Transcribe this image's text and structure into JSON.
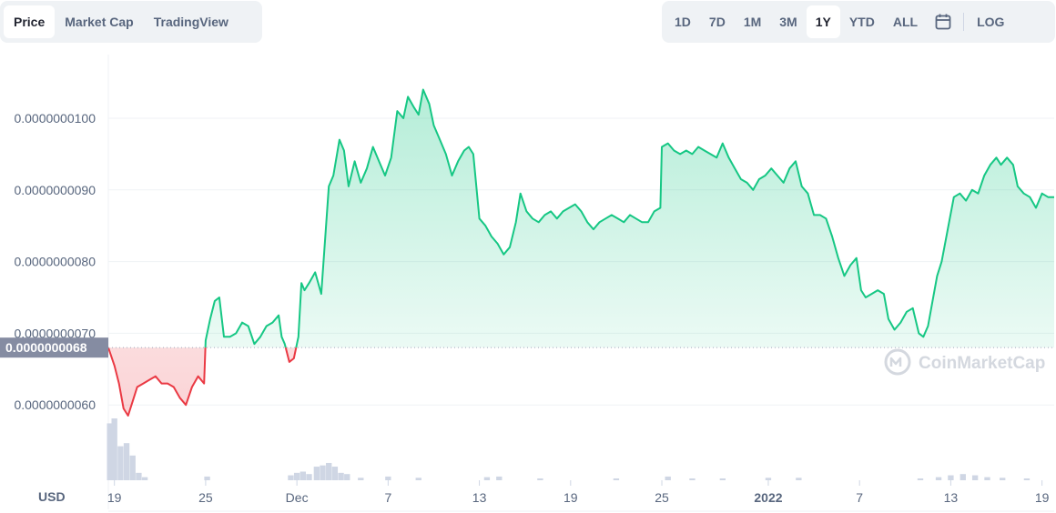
{
  "tabs_left": [
    {
      "label": "Price",
      "active": true
    },
    {
      "label": "Market Cap",
      "active": false
    },
    {
      "label": "TradingView",
      "active": false
    }
  ],
  "tabs_right": [
    {
      "label": "1D",
      "active": false
    },
    {
      "label": "7D",
      "active": false
    },
    {
      "label": "1M",
      "active": false
    },
    {
      "label": "3M",
      "active": false
    },
    {
      "label": "1Y",
      "active": true
    },
    {
      "label": "YTD",
      "active": false
    },
    {
      "label": "ALL",
      "active": false
    }
  ],
  "log_label": "LOG",
  "calendar_icon": "calendar-icon",
  "currency_label": "USD",
  "watermark": "CoinMarketCap",
  "colors": {
    "up": "#16c784",
    "down": "#ea3943",
    "grid": "#eff2f5",
    "volume": "#cfd6e4",
    "ref_tag": "#858ca2"
  },
  "chart_data": {
    "type": "line",
    "ref_price": 6.8e-09,
    "ref_label": "0.0000000068",
    "ylim": [
      5.2e-09,
      1.1e-08
    ],
    "yticks": [
      "0.0000000060",
      "0.0000000070",
      "0.0000000080",
      "0.0000000090",
      "0.0000000100"
    ],
    "ytick_values": [
      6e-09,
      7e-09,
      8e-09,
      9e-09,
      1e-08
    ],
    "xticks": [
      {
        "label": "19",
        "x": 0.0
      },
      {
        "label": "25",
        "x": 6.0
      },
      {
        "label": "Dec",
        "x": 12.0
      },
      {
        "label": "7",
        "x": 18.0
      },
      {
        "label": "13",
        "x": 24.0
      },
      {
        "label": "19",
        "x": 30.0
      },
      {
        "label": "25",
        "x": 36.0
      },
      {
        "label": "2022",
        "x": 43.0,
        "bold": true
      },
      {
        "label": "7",
        "x": 49.0
      },
      {
        "label": "13",
        "x": 55.0
      },
      {
        "label": "19",
        "x": 61.0
      }
    ],
    "xlim": [
      -0.4,
      61.8
    ],
    "price": [
      [
        -0.4,
        6.8
      ],
      [
        0.0,
        6.55
      ],
      [
        0.3,
        6.3
      ],
      [
        0.6,
        5.95
      ],
      [
        0.9,
        5.85
      ],
      [
        1.2,
        6.05
      ],
      [
        1.5,
        6.25
      ],
      [
        1.9,
        6.3
      ],
      [
        2.3,
        6.35
      ],
      [
        2.7,
        6.4
      ],
      [
        3.1,
        6.3
      ],
      [
        3.5,
        6.3
      ],
      [
        3.9,
        6.25
      ],
      [
        4.3,
        6.1
      ],
      [
        4.7,
        6.0
      ],
      [
        5.1,
        6.25
      ],
      [
        5.5,
        6.4
      ],
      [
        5.9,
        6.3
      ],
      [
        6.0,
        6.9
      ],
      [
        6.3,
        7.2
      ],
      [
        6.6,
        7.45
      ],
      [
        6.9,
        7.5
      ],
      [
        7.2,
        6.95
      ],
      [
        7.6,
        6.95
      ],
      [
        8.0,
        7.0
      ],
      [
        8.4,
        7.15
      ],
      [
        8.8,
        7.1
      ],
      [
        9.2,
        6.85
      ],
      [
        9.6,
        6.95
      ],
      [
        10.0,
        7.1
      ],
      [
        10.4,
        7.15
      ],
      [
        10.8,
        7.25
      ],
      [
        11.0,
        6.95
      ],
      [
        11.2,
        6.85
      ],
      [
        11.5,
        6.6
      ],
      [
        11.8,
        6.65
      ],
      [
        12.1,
        6.95
      ],
      [
        12.3,
        7.7
      ],
      [
        12.5,
        7.6
      ],
      [
        12.8,
        7.7
      ],
      [
        13.2,
        7.85
      ],
      [
        13.6,
        7.55
      ],
      [
        13.9,
        8.45
      ],
      [
        14.1,
        9.05
      ],
      [
        14.4,
        9.2
      ],
      [
        14.8,
        9.7
      ],
      [
        15.1,
        9.55
      ],
      [
        15.4,
        9.05
      ],
      [
        15.8,
        9.4
      ],
      [
        16.2,
        9.1
      ],
      [
        16.6,
        9.3
      ],
      [
        17.0,
        9.6
      ],
      [
        17.4,
        9.4
      ],
      [
        17.8,
        9.2
      ],
      [
        18.2,
        9.45
      ],
      [
        18.6,
        10.1
      ],
      [
        19.0,
        10.0
      ],
      [
        19.3,
        10.3
      ],
      [
        19.7,
        10.15
      ],
      [
        20.0,
        10.05
      ],
      [
        20.3,
        10.4
      ],
      [
        20.7,
        10.2
      ],
      [
        21.0,
        9.9
      ],
      [
        21.4,
        9.7
      ],
      [
        21.8,
        9.5
      ],
      [
        22.2,
        9.2
      ],
      [
        22.6,
        9.4
      ],
      [
        23.0,
        9.55
      ],
      [
        23.3,
        9.6
      ],
      [
        23.6,
        9.5
      ],
      [
        24.0,
        8.6
      ],
      [
        24.4,
        8.5
      ],
      [
        24.8,
        8.35
      ],
      [
        25.2,
        8.25
      ],
      [
        25.6,
        8.1
      ],
      [
        26.0,
        8.2
      ],
      [
        26.4,
        8.55
      ],
      [
        26.7,
        8.95
      ],
      [
        27.1,
        8.7
      ],
      [
        27.5,
        8.6
      ],
      [
        27.9,
        8.55
      ],
      [
        28.3,
        8.65
      ],
      [
        28.7,
        8.7
      ],
      [
        29.1,
        8.6
      ],
      [
        29.5,
        8.7
      ],
      [
        29.9,
        8.75
      ],
      [
        30.3,
        8.8
      ],
      [
        30.7,
        8.7
      ],
      [
        31.1,
        8.55
      ],
      [
        31.5,
        8.45
      ],
      [
        31.9,
        8.55
      ],
      [
        32.3,
        8.6
      ],
      [
        32.7,
        8.65
      ],
      [
        33.1,
        8.6
      ],
      [
        33.5,
        8.55
      ],
      [
        33.9,
        8.65
      ],
      [
        34.3,
        8.6
      ],
      [
        34.7,
        8.55
      ],
      [
        35.1,
        8.55
      ],
      [
        35.5,
        8.7
      ],
      [
        35.9,
        8.75
      ],
      [
        36.0,
        9.6
      ],
      [
        36.4,
        9.65
      ],
      [
        36.8,
        9.55
      ],
      [
        37.2,
        9.5
      ],
      [
        37.6,
        9.55
      ],
      [
        38.0,
        9.5
      ],
      [
        38.4,
        9.6
      ],
      [
        38.8,
        9.55
      ],
      [
        39.2,
        9.5
      ],
      [
        39.6,
        9.45
      ],
      [
        40.0,
        9.65
      ],
      [
        40.4,
        9.45
      ],
      [
        40.8,
        9.3
      ],
      [
        41.2,
        9.15
      ],
      [
        41.6,
        9.1
      ],
      [
        42.0,
        9.0
      ],
      [
        42.4,
        9.15
      ],
      [
        42.8,
        9.2
      ],
      [
        43.2,
        9.3
      ],
      [
        43.6,
        9.2
      ],
      [
        44.0,
        9.1
      ],
      [
        44.4,
        9.3
      ],
      [
        44.8,
        9.4
      ],
      [
        45.2,
        9.05
      ],
      [
        45.6,
        8.95
      ],
      [
        46.0,
        8.65
      ],
      [
        46.4,
        8.65
      ],
      [
        46.8,
        8.6
      ],
      [
        47.2,
        8.35
      ],
      [
        47.6,
        8.05
      ],
      [
        48.0,
        7.8
      ],
      [
        48.4,
        7.95
      ],
      [
        48.8,
        8.05
      ],
      [
        49.1,
        7.6
      ],
      [
        49.4,
        7.5
      ],
      [
        49.8,
        7.55
      ],
      [
        50.2,
        7.6
      ],
      [
        50.6,
        7.55
      ],
      [
        50.9,
        7.2
      ],
      [
        51.3,
        7.05
      ],
      [
        51.7,
        7.15
      ],
      [
        52.1,
        7.3
      ],
      [
        52.5,
        7.35
      ],
      [
        52.9,
        7.0
      ],
      [
        53.2,
        6.95
      ],
      [
        53.5,
        7.1
      ],
      [
        53.8,
        7.45
      ],
      [
        54.1,
        7.8
      ],
      [
        54.4,
        8.0
      ],
      [
        54.8,
        8.45
      ],
      [
        55.2,
        8.9
      ],
      [
        55.6,
        8.95
      ],
      [
        56.0,
        8.85
      ],
      [
        56.4,
        9.0
      ],
      [
        56.8,
        8.95
      ],
      [
        57.2,
        9.2
      ],
      [
        57.6,
        9.35
      ],
      [
        58.0,
        9.45
      ],
      [
        58.3,
        9.35
      ],
      [
        58.7,
        9.45
      ],
      [
        59.1,
        9.35
      ],
      [
        59.4,
        9.05
      ],
      [
        59.8,
        8.95
      ],
      [
        60.2,
        8.9
      ],
      [
        60.6,
        8.75
      ],
      [
        61.0,
        8.95
      ],
      [
        61.4,
        8.9
      ],
      [
        61.8,
        8.9
      ]
    ],
    "volume": [
      [
        -0.3,
        0.92
      ],
      [
        0.0,
        1.0
      ],
      [
        0.4,
        0.55
      ],
      [
        0.8,
        0.6
      ],
      [
        1.2,
        0.4
      ],
      [
        1.6,
        0.12
      ],
      [
        2.0,
        0.05
      ],
      [
        6.1,
        0.06
      ],
      [
        11.6,
        0.08
      ],
      [
        12.0,
        0.12
      ],
      [
        12.4,
        0.14
      ],
      [
        12.8,
        0.1
      ],
      [
        13.3,
        0.22
      ],
      [
        13.7,
        0.24
      ],
      [
        14.1,
        0.28
      ],
      [
        14.5,
        0.22
      ],
      [
        14.9,
        0.12
      ],
      [
        15.3,
        0.1
      ],
      [
        16.2,
        0.04
      ],
      [
        18.0,
        0.06
      ],
      [
        20.0,
        0.04
      ],
      [
        24.5,
        0.05
      ],
      [
        25.3,
        0.06
      ],
      [
        28.0,
        0.03
      ],
      [
        33.0,
        0.03
      ],
      [
        36.4,
        0.06
      ],
      [
        38.0,
        0.03
      ],
      [
        40.0,
        0.03
      ],
      [
        43.0,
        0.04
      ],
      [
        45.0,
        0.04
      ],
      [
        53.0,
        0.03
      ],
      [
        54.2,
        0.05
      ],
      [
        55.0,
        0.08
      ],
      [
        55.8,
        0.1
      ],
      [
        56.6,
        0.08
      ],
      [
        57.4,
        0.05
      ],
      [
        58.4,
        0.04
      ],
      [
        60.0,
        0.03
      ]
    ]
  }
}
